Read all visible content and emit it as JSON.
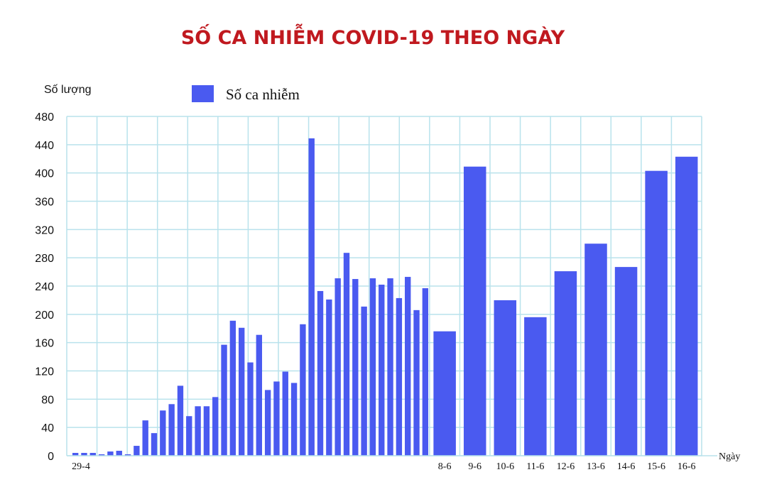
{
  "chart_data": {
    "type": "bar",
    "title": "SỐ CA NHIỄM COVID-19 THEO NGÀY",
    "ylabel": "Số lượng",
    "xlabel": "Ngày",
    "ylim": [
      0,
      480
    ],
    "yticks": [
      "0",
      "40",
      "80",
      "120",
      "160",
      "200",
      "240",
      "280",
      "320",
      "360",
      "400",
      "440",
      "480"
    ],
    "grid": true,
    "legend": {
      "position": "top-left",
      "label": "Số ca nhiễm"
    },
    "colors": {
      "bar": "#4a5af0",
      "title": "#c0191f",
      "grid": "#b9e2ec"
    },
    "series": [
      {
        "name": "Số ca nhiễm",
        "early": [
          4,
          4,
          4,
          2,
          6,
          7,
          2,
          14,
          50,
          32,
          64,
          73,
          99,
          56,
          70,
          70,
          83,
          157,
          191,
          181,
          132,
          171,
          93,
          105,
          119,
          103,
          186,
          449,
          233,
          221,
          251,
          287,
          250,
          211,
          251,
          242,
          251,
          223,
          253,
          206,
          237
        ],
        "late": [
          {
            "label": "8-6",
            "value": 176
          },
          {
            "label": "9-6",
            "value": 409
          },
          {
            "label": "10-6",
            "value": 220
          },
          {
            "label": "11-6",
            "value": 196
          },
          {
            "label": "12-6",
            "value": 261
          },
          {
            "label": "13-6",
            "value": 300
          },
          {
            "label": "14-6",
            "value": 267
          },
          {
            "label": "15-6",
            "value": 403
          },
          {
            "label": "16-6",
            "value": 423
          }
        ]
      }
    ],
    "first_label": "29-4"
  }
}
